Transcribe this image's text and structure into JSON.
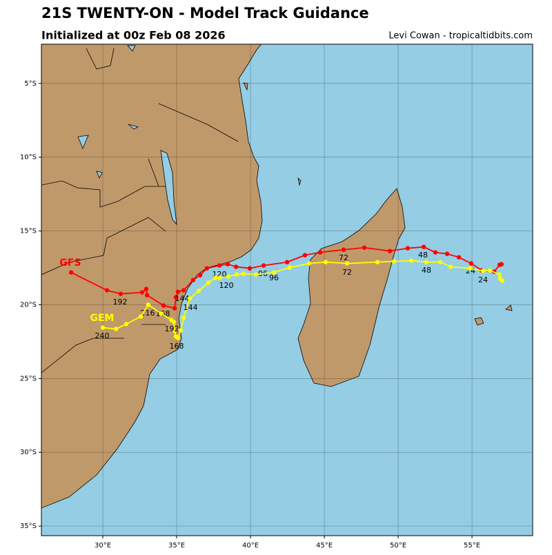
{
  "chart_data": {
    "type": "track_map",
    "title": "21S TWENTY-ON - Model Track Guidance",
    "subtitle": "Initialized at 00z Feb 08 2026",
    "credit": "Levi Cowan - tropicaltidbits.com",
    "xlim": [
      25.84,
      59.11
    ],
    "ylim": [
      -35.65,
      -2.34
    ],
    "xticks": [
      {
        "value": 30,
        "label": "30°E"
      },
      {
        "value": 35,
        "label": "35°E"
      },
      {
        "value": 40,
        "label": "40°E"
      },
      {
        "value": 45,
        "label": "45°E"
      },
      {
        "value": 50,
        "label": "50°E"
      },
      {
        "value": 55,
        "label": "55°E"
      }
    ],
    "yticks": [
      {
        "value": -5,
        "label": "5°S"
      },
      {
        "value": -10,
        "label": "10°S"
      },
      {
        "value": -15,
        "label": "15°S"
      },
      {
        "value": -20,
        "label": "20°S"
      },
      {
        "value": -25,
        "label": "25°S"
      },
      {
        "value": -30,
        "label": "30°S"
      },
      {
        "value": -35,
        "label": "35°S"
      }
    ],
    "grid": true,
    "series": [
      {
        "name": "GFS",
        "color": "#ff0000",
        "lon": [
          57.0,
          56.87,
          56.5,
          55.65,
          54.95,
          54.11,
          53.32,
          52.52,
          51.73,
          50.65,
          49.44,
          47.71,
          46.31,
          44.72,
          43.69,
          42.48,
          40.89,
          39.95,
          39.02,
          38.46,
          37.9,
          37.05,
          36.59,
          36.12,
          35.47,
          35.09,
          34.95,
          34.86,
          34.11,
          33.0,
          32.94,
          32.66,
          31.21,
          30.28,
          27.85
        ],
        "lat": [
          -17.25,
          -17.29,
          -17.76,
          -17.67,
          -17.2,
          -16.78,
          -16.55,
          -16.45,
          -16.08,
          -16.17,
          -16.36,
          -16.13,
          -16.27,
          -16.45,
          -16.64,
          -17.11,
          -17.34,
          -17.53,
          -17.43,
          -17.25,
          -17.34,
          -17.53,
          -18.0,
          -18.32,
          -19.02,
          -19.12,
          -19.49,
          -20.24,
          -20.05,
          -19.35,
          -18.93,
          -19.16,
          -19.26,
          -19.02,
          -17.81
        ],
        "hour_labels": [
          24,
          48,
          72,
          96,
          120,
          144,
          168,
          192,
          216
        ]
      },
      {
        "name": "GEM",
        "color": "#ffff00",
        "lon": [
          57.05,
          56.91,
          56.87,
          56.21,
          55.75,
          54.86,
          53.55,
          52.85,
          51.91,
          50.89,
          49.72,
          48.6,
          46.54,
          45.09,
          43.97,
          42.66,
          41.59,
          40.37,
          39.53,
          39.06,
          38.5,
          37.9,
          37.62,
          37.15,
          36.49,
          35.89,
          35.47,
          35.28,
          35.09,
          34.95,
          34.86,
          34.81,
          34.63,
          33.97,
          33.08,
          32.57,
          31.59,
          30.89,
          30.0
        ],
        "lat": [
          -18.37,
          -18.23,
          -17.95,
          -17.67,
          -17.71,
          -17.53,
          -17.43,
          -17.11,
          -17.11,
          -17.01,
          -17.06,
          -17.11,
          -17.2,
          -17.11,
          -17.2,
          -17.48,
          -17.81,
          -17.95,
          -17.9,
          -17.95,
          -18.09,
          -18.18,
          -18.18,
          -18.51,
          -19.07,
          -19.58,
          -20.89,
          -21.73,
          -22.25,
          -22.15,
          -21.78,
          -21.17,
          -21.03,
          -20.61,
          -20.0,
          -20.8,
          -21.31,
          -21.64,
          -21.55
        ],
        "hour_labels": [
          24,
          48,
          72,
          96,
          120,
          144,
          168,
          192,
          240
        ]
      }
    ]
  }
}
